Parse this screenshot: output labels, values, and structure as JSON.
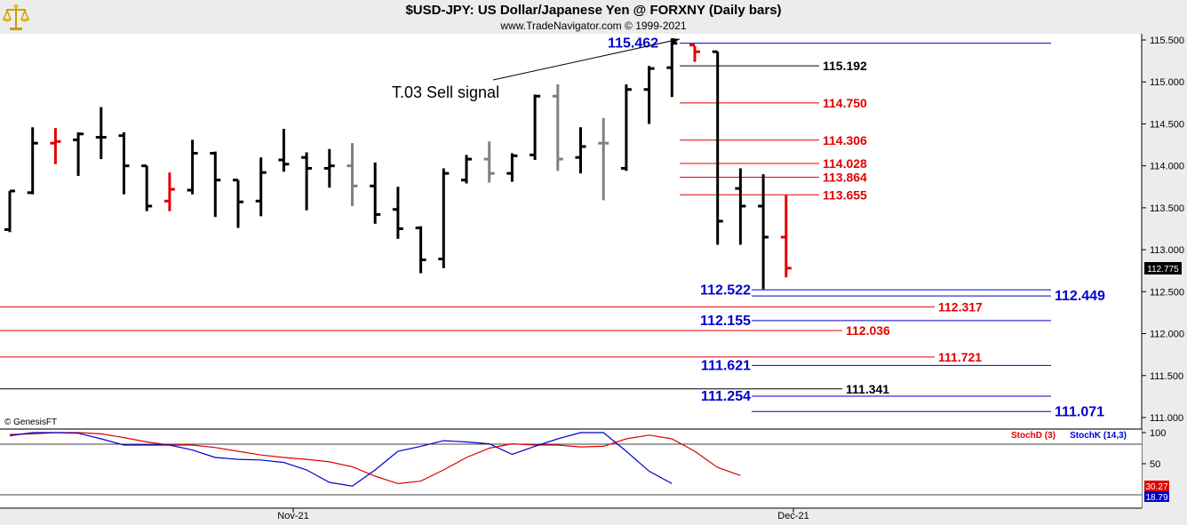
{
  "header": {
    "title": "$USD-JPY:  US Dollar/Japanese Yen @ FORXNY  (Daily bars)",
    "subtitle": "www.TradeNavigator.com © 1999-2021"
  },
  "colors": {
    "black": "#000000",
    "red": "#e00000",
    "blue": "#0000cc",
    "gray": "#808080"
  },
  "chart_data": [
    {
      "type": "ohlc",
      "title": "$USD-JPY:  US Dollar/Japanese Yen @ FORXNY  (Daily bars)",
      "ylim": [
        110.9,
        115.7
      ],
      "y_ticks": [
        "115.500",
        "115.000",
        "114.500",
        "114.000",
        "113.500",
        "113.000",
        "112.500",
        "112.000",
        "111.500",
        "111.000"
      ],
      "x_labels": [
        "Nov-21",
        "Dec-21"
      ],
      "last_price": "112.775",
      "annotation": "T.03 Sell signal",
      "copyright": "© GenesisFT",
      "bars": [
        {
          "o": 113.24,
          "h": 113.7,
          "l": 113.21,
          "c": 113.7,
          "color": "black"
        },
        {
          "o": 113.68,
          "h": 114.46,
          "l": 113.66,
          "c": 114.27,
          "color": "black"
        },
        {
          "o": 114.27,
          "h": 114.45,
          "l": 114.02,
          "c": 114.29,
          "color": "red"
        },
        {
          "o": 114.31,
          "h": 114.4,
          "l": 113.88,
          "c": 114.38,
          "color": "black"
        },
        {
          "o": 114.34,
          "h": 114.7,
          "l": 114.08,
          "c": 114.34,
          "color": "black"
        },
        {
          "o": 114.36,
          "h": 114.4,
          "l": 113.66,
          "c": 114.0,
          "color": "black"
        },
        {
          "o": 114.0,
          "h": 114.0,
          "l": 113.46,
          "c": 113.52,
          "color": "black"
        },
        {
          "o": 113.58,
          "h": 113.92,
          "l": 113.46,
          "c": 113.72,
          "color": "red"
        },
        {
          "o": 113.71,
          "h": 114.31,
          "l": 113.66,
          "c": 114.15,
          "color": "black"
        },
        {
          "o": 114.15,
          "h": 114.17,
          "l": 113.39,
          "c": 113.83,
          "color": "black"
        },
        {
          "o": 113.83,
          "h": 113.83,
          "l": 113.26,
          "c": 113.57,
          "color": "black"
        },
        {
          "o": 113.58,
          "h": 114.1,
          "l": 113.4,
          "c": 113.92,
          "color": "black"
        },
        {
          "o": 114.07,
          "h": 114.44,
          "l": 113.93,
          "c": 114.02,
          "color": "black"
        },
        {
          "o": 114.1,
          "h": 114.16,
          "l": 113.47,
          "c": 113.97,
          "color": "black"
        },
        {
          "o": 113.97,
          "h": 114.2,
          "l": 113.74,
          "c": 114.0,
          "color": "black"
        },
        {
          "o": 114.0,
          "h": 114.27,
          "l": 113.52,
          "c": 113.76,
          "color": "gray"
        },
        {
          "o": 113.76,
          "h": 114.04,
          "l": 113.31,
          "c": 113.42,
          "color": "black"
        },
        {
          "o": 113.48,
          "h": 113.75,
          "l": 113.13,
          "c": 113.25,
          "color": "black"
        },
        {
          "o": 113.26,
          "h": 113.28,
          "l": 112.72,
          "c": 112.88,
          "color": "black"
        },
        {
          "o": 112.89,
          "h": 113.97,
          "l": 112.78,
          "c": 113.91,
          "color": "black"
        },
        {
          "o": 113.83,
          "h": 114.13,
          "l": 113.79,
          "c": 114.08,
          "color": "black"
        },
        {
          "o": 114.08,
          "h": 114.29,
          "l": 113.8,
          "c": 113.91,
          "color": "gray"
        },
        {
          "o": 113.91,
          "h": 114.15,
          "l": 113.81,
          "c": 114.12,
          "color": "black"
        },
        {
          "o": 114.13,
          "h": 114.85,
          "l": 114.07,
          "c": 114.83,
          "color": "black"
        },
        {
          "o": 114.83,
          "h": 114.97,
          "l": 113.94,
          "c": 114.08,
          "color": "gray"
        },
        {
          "o": 114.1,
          "h": 114.46,
          "l": 113.91,
          "c": 114.23,
          "color": "black"
        },
        {
          "o": 114.27,
          "h": 114.57,
          "l": 113.59,
          "c": 114.27,
          "color": "gray"
        },
        {
          "o": 113.97,
          "h": 114.97,
          "l": 113.94,
          "c": 114.91,
          "color": "black"
        },
        {
          "o": 114.91,
          "h": 115.19,
          "l": 114.5,
          "c": 115.16,
          "color": "black"
        },
        {
          "o": 115.17,
          "h": 115.52,
          "l": 114.82,
          "c": 115.46,
          "color": "black"
        },
        {
          "o": 115.44,
          "h": 115.43,
          "l": 115.24,
          "c": 115.36,
          "color": "red"
        },
        {
          "o": 115.36,
          "h": 115.36,
          "l": 113.06,
          "c": 113.34,
          "color": "black"
        },
        {
          "o": 113.73,
          "h": 113.97,
          "l": 113.06,
          "c": 113.52,
          "color": "black"
        },
        {
          "o": 113.52,
          "h": 113.9,
          "l": 112.53,
          "c": 113.15,
          "color": "black"
        },
        {
          "o": 113.15,
          "h": 113.65,
          "l": 112.67,
          "c": 112.78,
          "color": "red"
        }
      ],
      "levels": [
        {
          "value": "115.462",
          "color": "blue",
          "line": true
        },
        {
          "value": "115.192",
          "color": "black",
          "line": true
        },
        {
          "value": "114.750",
          "color": "red",
          "line": true
        },
        {
          "value": "114.306",
          "color": "red",
          "line": true
        },
        {
          "value": "114.028",
          "color": "red",
          "line": true
        },
        {
          "value": "113.864",
          "color": "red",
          "line": true
        },
        {
          "value": "113.655",
          "color": "red",
          "line": true
        },
        {
          "value": "112.522",
          "color": "blue",
          "line": true
        },
        {
          "value": "112.449",
          "color": "blue",
          "line": true
        },
        {
          "value": "112.317",
          "color": "red",
          "line": true
        },
        {
          "value": "112.155",
          "color": "blue",
          "line": true
        },
        {
          "value": "112.036",
          "color": "red",
          "line": true
        },
        {
          "value": "111.721",
          "color": "red",
          "line": true
        },
        {
          "value": "111.621",
          "color": "blue",
          "line": true
        },
        {
          "value": "111.341",
          "color": "black",
          "line": true
        },
        {
          "value": "111.254",
          "color": "blue",
          "line": true
        },
        {
          "value": "111.071",
          "color": "blue",
          "line": true
        }
      ]
    },
    {
      "type": "line",
      "ylim": [
        0,
        100
      ],
      "y_ticks": [
        "100",
        "50"
      ],
      "series": [
        {
          "name": "StochD (3)",
          "color": "red",
          "values": [
            97,
            98,
            100,
            100,
            98,
            92,
            85,
            80,
            80,
            76,
            70,
            64,
            60,
            57,
            53,
            45,
            30,
            18,
            22,
            40,
            60,
            75,
            82,
            80,
            80,
            77,
            78,
            90,
            96,
            90,
            70,
            44,
            31
          ]
        },
        {
          "name": "StochK (14,3)",
          "color": "blue",
          "values": [
            95,
            100,
            100,
            99,
            90,
            80,
            80,
            80,
            72,
            60,
            57,
            56,
            52,
            40,
            20,
            14,
            40,
            70,
            78,
            87,
            85,
            82,
            65,
            78,
            90,
            100,
            100,
            70,
            38,
            18
          ]
        }
      ],
      "last_values": {
        "stochD": "30.27",
        "stochK": "18.79"
      }
    }
  ]
}
